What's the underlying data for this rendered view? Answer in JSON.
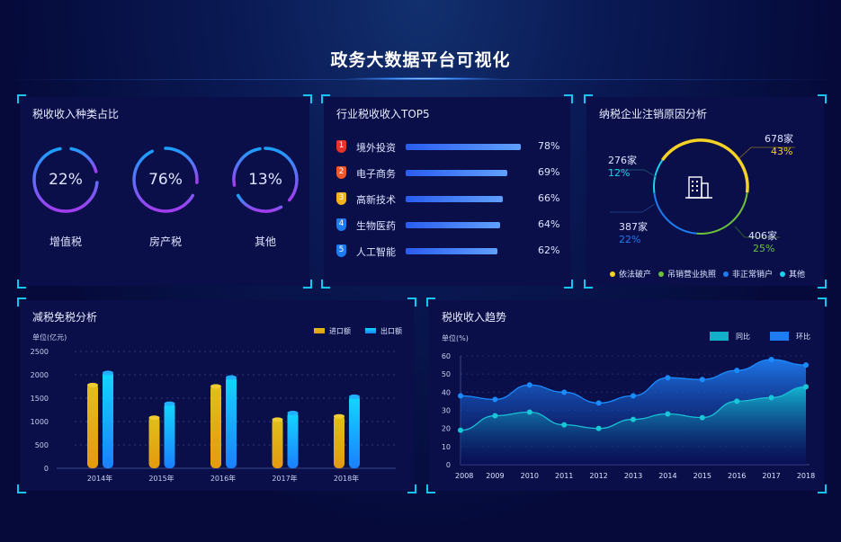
{
  "header": {
    "title": "政务大数据平台可视化"
  },
  "tax_types": {
    "title": "税收收入种类占比",
    "items": [
      {
        "label": "增值税",
        "value": "22%"
      },
      {
        "label": "房产税",
        "value": "76%"
      },
      {
        "label": "其他",
        "value": "13%"
      }
    ]
  },
  "top5": {
    "title": "行业税收收入TOP5",
    "items": [
      {
        "rank": "1",
        "label": "境外投资",
        "value": "78%",
        "pct": 78,
        "badge": "#e8332a"
      },
      {
        "rank": "2",
        "label": "电子商务",
        "value": "69%",
        "pct": 69,
        "badge": "#f0572a"
      },
      {
        "rank": "3",
        "label": "高新技术",
        "value": "66%",
        "pct": 66,
        "badge": "#f0b41e"
      },
      {
        "rank": "4",
        "label": "生物医药",
        "value": "64%",
        "pct": 64,
        "badge": "#1e7bf0"
      },
      {
        "rank": "5",
        "label": "人工智能",
        "value": "62%",
        "pct": 62,
        "badge": "#1e7bf0"
      }
    ]
  },
  "cancel": {
    "title": "纳税企业注销原因分析",
    "icon": "building-icon",
    "segments": [
      {
        "name": "依法破产",
        "count": "678家",
        "pct": "43%",
        "value": 43,
        "color": "#f5d223"
      },
      {
        "name": "吊销营业执照",
        "count": "406家",
        "pct": "25%",
        "value": 25,
        "color": "#6cc13a"
      },
      {
        "name": "非正常销户",
        "count": "387家",
        "pct": "22%",
        "value": 22,
        "color": "#1e7bf0"
      },
      {
        "name": "其他",
        "count": "276家",
        "pct": "12%",
        "value": 12,
        "color": "#17d4f0"
      }
    ]
  },
  "chart_data": [
    {
      "type": "bar",
      "title": "减税免税分析",
      "ylabel": "单位(亿元)",
      "ylim": [
        0,
        2500
      ],
      "yticks": [
        "0",
        "500",
        "1000",
        "1500",
        "2000",
        "2500"
      ],
      "categories": [
        "2014年",
        "2015年",
        "2016年",
        "2017年",
        "2018年"
      ],
      "legend": "top-right",
      "grid": true,
      "series": [
        {
          "name": "进口额",
          "color": "#e8a812",
          "values": [
            1820,
            1120,
            1790,
            1080,
            1150
          ]
        },
        {
          "name": "出口额",
          "color": "#13b4ff",
          "values": [
            2080,
            1420,
            1980,
            1220,
            1570
          ]
        }
      ]
    },
    {
      "type": "area",
      "title": "税收收入趋势",
      "ylabel": "单位(%)",
      "ylim": [
        0,
        60
      ],
      "yticks": [
        "0",
        "10",
        "20",
        "30",
        "40",
        "50",
        "60"
      ],
      "categories": [
        "2008",
        "2009",
        "2010",
        "2011",
        "2012",
        "2013",
        "2014",
        "2015",
        "2016",
        "2017",
        "2018"
      ],
      "legend": "top-right",
      "grid": true,
      "series": [
        {
          "name": "同比",
          "color": "#12b0c8",
          "values": [
            19,
            27,
            29,
            22,
            20,
            25,
            28,
            26,
            35,
            37,
            43
          ]
        },
        {
          "name": "环比",
          "color": "#1e7bf0",
          "values": [
            38,
            36,
            44,
            40,
            34,
            38,
            48,
            47,
            52,
            58,
            55
          ]
        }
      ]
    }
  ]
}
